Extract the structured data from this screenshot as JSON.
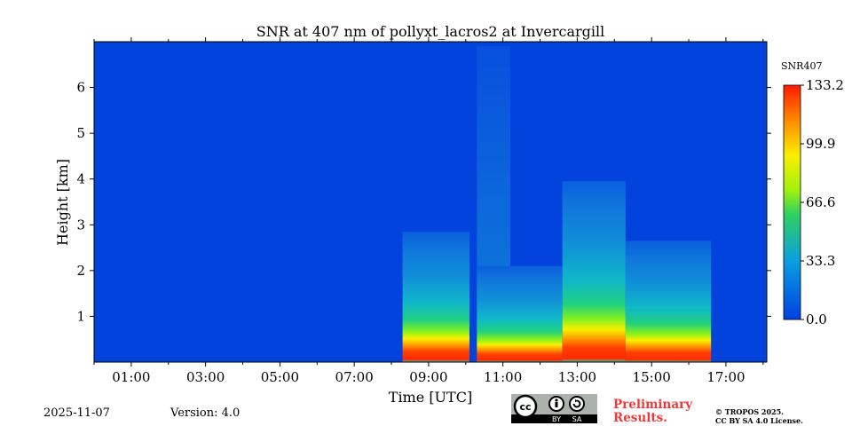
{
  "chart_data": {
    "type": "heatmap",
    "title": "SNR at 407 nm of pollyxt_lacros2 at Invercargill",
    "xlabel": "Time [UTC]",
    "ylabel": "Height [km]",
    "x_unit": "hour UTC",
    "xlim": [
      0,
      18.1
    ],
    "ylim": [
      0,
      7.0
    ],
    "xticks": [
      {
        "value": 1,
        "label": "01:00"
      },
      {
        "value": 3,
        "label": "03:00"
      },
      {
        "value": 5,
        "label": "05:00"
      },
      {
        "value": 7,
        "label": "07:00"
      },
      {
        "value": 9,
        "label": "09:00"
      },
      {
        "value": 11,
        "label": "11:00"
      },
      {
        "value": 13,
        "label": "13:00"
      },
      {
        "value": 15,
        "label": "15:00"
      },
      {
        "value": 17,
        "label": "17:00"
      }
    ],
    "yticks": [
      {
        "value": 1,
        "label": "1"
      },
      {
        "value": 2,
        "label": "2"
      },
      {
        "value": 3,
        "label": "3"
      },
      {
        "value": 4,
        "label": "4"
      },
      {
        "value": 5,
        "label": "5"
      },
      {
        "value": 6,
        "label": "6"
      }
    ],
    "colorbar": {
      "label": "SNR407",
      "min": 0.0,
      "max": 133.2,
      "ticks": [
        {
          "value": 0.0,
          "label": "0.0"
        },
        {
          "value": 33.3,
          "label": "33.3"
        },
        {
          "value": 66.6,
          "label": "66.6"
        },
        {
          "value": 99.9,
          "label": "99.9"
        },
        {
          "value": 133.2,
          "label": "133.2"
        }
      ]
    },
    "background_snr": 0,
    "signal_segments": [
      {
        "start": 8.3,
        "end": 10.1,
        "top_km": 2.85,
        "peak_snr": 133
      },
      {
        "start": 10.3,
        "end": 12.6,
        "top_km": 2.1,
        "peak_snr": 133
      },
      {
        "start": 12.6,
        "end": 14.3,
        "top_km": 3.95,
        "peak_snr": 133
      },
      {
        "start": 14.3,
        "end": 16.6,
        "top_km": 2.65,
        "peak_snr": 133
      }
    ],
    "faint_column": {
      "start": 10.3,
      "end": 11.2,
      "top_km": 6.9,
      "snr": 12
    }
  },
  "footer": {
    "date": "2025-11-07",
    "version": "Version: 4.0",
    "preliminary_line1": "Preliminary",
    "preliminary_line2": "Results.",
    "copyright_line1": "© TROPOS 2025.",
    "copyright_line2": "CC BY SA 4.0 License.",
    "license_badge": {
      "cc": "cc",
      "by": "BY",
      "sa": "SA"
    }
  }
}
